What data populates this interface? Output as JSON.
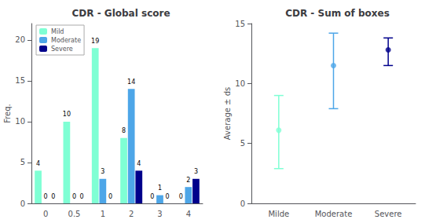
{
  "chart_data": [
    {
      "type": "bar",
      "title": "CDR - Global score",
      "ylabel": "Freq.",
      "categories": [
        "0",
        "0.5",
        "1",
        "2",
        "3",
        "4"
      ],
      "series": [
        {
          "name": "Mild",
          "color": "#7fffd4",
          "values": [
            4,
            10,
            19,
            8,
            0,
            0
          ]
        },
        {
          "name": "Moderate",
          "color": "#4da6e8",
          "values": [
            0,
            0,
            3,
            14,
            1,
            2
          ]
        },
        {
          "name": "Severe",
          "color": "#00008b",
          "values": [
            0,
            0,
            0,
            4,
            0,
            3
          ]
        }
      ],
      "ylim": [
        0,
        22
      ],
      "yticks": [
        0,
        5,
        10,
        15,
        20
      ],
      "data_labels": true,
      "legend": "upper left",
      "grid": false
    },
    {
      "type": "scatter",
      "title": "CDR - Sum of boxes",
      "ylabel": "Average ± ds",
      "categories": [
        "Milde",
        "Moderate",
        "Severe"
      ],
      "values": [
        6.1,
        11.5,
        12.8
      ],
      "errors": [
        [
          3.2,
          2.9
        ],
        [
          3.6,
          2.7
        ],
        [
          1.3,
          1.0
        ]
      ],
      "colors": [
        "#7fffd4",
        "#4da6e8",
        "#00008b"
      ],
      "marker": "circle",
      "ylim": [
        0,
        15
      ],
      "yticks": [
        0,
        5,
        10,
        15
      ],
      "grid": false
    }
  ]
}
